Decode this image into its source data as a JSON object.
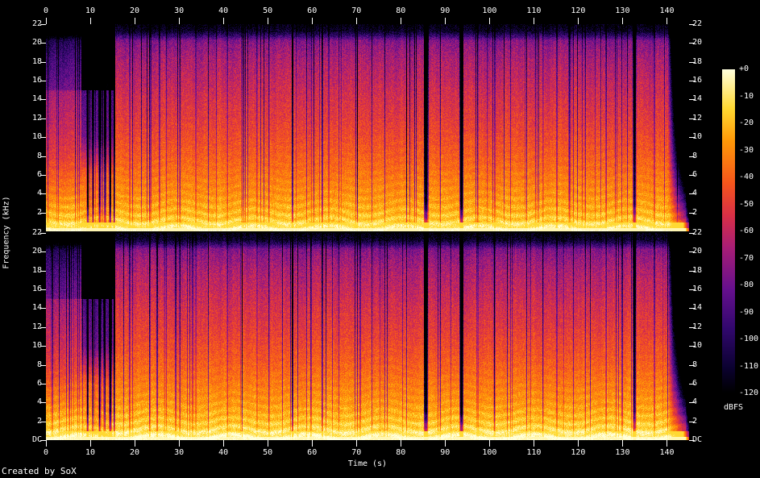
{
  "colors": {
    "background": "#000000",
    "foreground": "#ffffff"
  },
  "footer": {
    "credit": "Created by SoX"
  },
  "chart_data": {
    "type": "heatmap",
    "subtype": "audio-spectrogram-stereo",
    "title": "",
    "xlabel": "Time (s)",
    "ylabel": "Frequency (kHz)",
    "colorbar_label": "dBFS",
    "duration_s": 145,
    "x_ticks": [
      0,
      10,
      20,
      30,
      40,
      50,
      60,
      70,
      80,
      90,
      100,
      110,
      120,
      130,
      140
    ],
    "y_range_khz": [
      0,
      22
    ],
    "y_ticks_khz": [
      22,
      20,
      18,
      16,
      14,
      12,
      10,
      8,
      6,
      4,
      2
    ],
    "dc_label": "DC",
    "channels": 2,
    "colorbar_ticks": [
      "+0",
      "-10",
      "-20",
      "-30",
      "-40",
      "-50",
      "-60",
      "-70",
      "-80",
      "-90",
      "-100",
      "-110",
      "-120"
    ],
    "colorbar_range_db": [
      0,
      -120
    ],
    "palette": [
      [
        0.0,
        [
          0,
          0,
          0
        ]
      ],
      [
        0.08,
        [
          12,
          2,
          50
        ]
      ],
      [
        0.2,
        [
          50,
          8,
          110
        ]
      ],
      [
        0.32,
        [
          102,
          16,
          142
        ]
      ],
      [
        0.45,
        [
          168,
          30,
          118
        ]
      ],
      [
        0.55,
        [
          218,
          48,
          70
        ]
      ],
      [
        0.65,
        [
          246,
          86,
          28
        ]
      ],
      [
        0.78,
        [
          255,
          153,
          8
        ]
      ],
      [
        0.88,
        [
          255,
          217,
          50
        ]
      ],
      [
        1.0,
        [
          255,
          255,
          220
        ]
      ]
    ],
    "spectral_profile_khz_dbfs": [
      [
        0,
        -3
      ],
      [
        0.5,
        -9
      ],
      [
        1,
        -15
      ],
      [
        2,
        -21
      ],
      [
        3,
        -25
      ],
      [
        4,
        -29
      ],
      [
        6,
        -35
      ],
      [
        8,
        -41
      ],
      [
        10,
        -46
      ],
      [
        12,
        -51
      ],
      [
        14,
        -55
      ],
      [
        16,
        -60
      ],
      [
        18,
        -65
      ],
      [
        19.5,
        -71
      ],
      [
        20.3,
        -76
      ],
      [
        20.8,
        -96
      ],
      [
        21.3,
        -112
      ],
      [
        22,
        -119
      ]
    ],
    "events": {
      "silences_t_w_depth": [
        [
          9.4,
          0.5,
          0.5
        ],
        [
          10.6,
          0.4,
          0.4
        ],
        [
          12.1,
          0.5,
          0.45
        ],
        [
          13.3,
          0.4,
          0.4
        ],
        [
          14.5,
          0.6,
          0.5
        ],
        [
          15.4,
          0.4,
          0.45
        ],
        [
          18.9,
          0.25,
          0.2
        ],
        [
          23.4,
          0.35,
          0.3
        ],
        [
          27.1,
          0.25,
          0.18
        ],
        [
          30.2,
          0.3,
          0.25
        ],
        [
          33.8,
          0.25,
          0.18
        ],
        [
          36.6,
          0.3,
          0.22
        ],
        [
          40.9,
          0.25,
          0.18
        ],
        [
          44.2,
          0.3,
          0.2
        ],
        [
          47.6,
          0.25,
          0.18
        ],
        [
          50.3,
          0.3,
          0.22
        ],
        [
          55.6,
          0.5,
          0.35
        ],
        [
          58.8,
          0.25,
          0.18
        ],
        [
          62.3,
          0.4,
          0.3
        ],
        [
          66.1,
          0.25,
          0.18
        ],
        [
          70.2,
          0.3,
          0.22
        ],
        [
          73.5,
          0.25,
          0.18
        ],
        [
          76.4,
          0.3,
          0.2
        ],
        [
          81.3,
          0.3,
          0.22
        ],
        [
          85.7,
          1.1,
          0.55
        ],
        [
          88.9,
          0.3,
          0.25
        ],
        [
          93.7,
          1.0,
          0.6
        ],
        [
          97.4,
          0.25,
          0.18
        ],
        [
          101.2,
          0.3,
          0.2
        ],
        [
          104.8,
          0.25,
          0.18
        ],
        [
          108.4,
          0.3,
          0.22
        ],
        [
          112.1,
          0.25,
          0.18
        ],
        [
          115.2,
          0.3,
          0.2
        ],
        [
          118.9,
          0.25,
          0.18
        ],
        [
          121.6,
          0.3,
          0.2
        ],
        [
          126.3,
          0.3,
          0.22
        ],
        [
          129.8,
          0.25,
          0.18
        ],
        [
          132.7,
          0.9,
          0.45
        ],
        [
          137.2,
          0.3,
          0.2
        ]
      ],
      "intro_quiet": {
        "t_start": 8,
        "t_end": 15.6
      },
      "high_freq_dark_block": {
        "t_start": 8,
        "t_end": 15.6,
        "f_above_khz": 15
      },
      "lowpass_cutoff_khz": 20.3,
      "fade_out_start_s": 140.2,
      "bright_bass_band_max_khz": 1
    }
  }
}
